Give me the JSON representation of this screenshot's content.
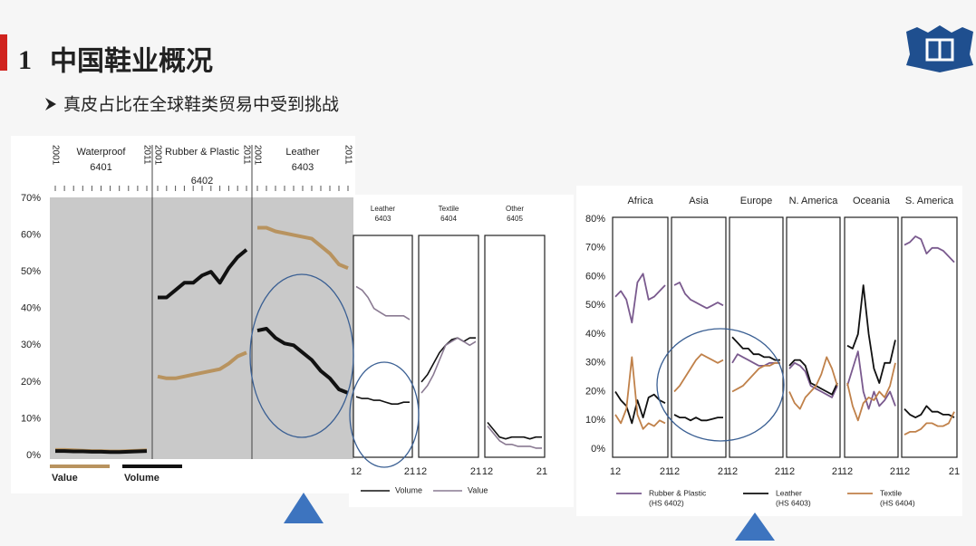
{
  "header": {
    "number": "1",
    "title": "中国鞋业概况",
    "bullet": "真皮占比在全球鞋类贸易中受到挑战"
  },
  "chart_data": [
    {
      "type": "line",
      "panels": [
        {
          "name": "Waterproof",
          "code": "6401"
        },
        {
          "name": "Rubber & Plastic",
          "code": "6402"
        },
        {
          "name": "Leather",
          "code": "6403"
        }
      ],
      "x": [
        2001,
        2002,
        2003,
        2004,
        2005,
        2006,
        2007,
        2008,
        2009,
        2010,
        2011
      ],
      "xlim": [
        2001,
        2011
      ],
      "xticks": [
        2001,
        2011
      ],
      "ylim": [
        0,
        70
      ],
      "yticks": [
        {
          "value": 0,
          "label": "0%"
        },
        {
          "value": 10,
          "label": "10%"
        },
        {
          "value": 20,
          "label": "20%"
        },
        {
          "value": 30,
          "label": "30%"
        },
        {
          "value": 40,
          "label": "40%"
        },
        {
          "value": 50,
          "label": "50%"
        },
        {
          "value": 60,
          "label": "60%"
        },
        {
          "value": 70,
          "label": "70%"
        }
      ],
      "series": [
        {
          "name": "Value",
          "color": "#b8935f",
          "values": [
            [
              1.5,
              1.5,
              1.4,
              1.3,
              1.2,
              1.2,
              1.1,
              1.1,
              1.2,
              1.3,
              1.4
            ],
            [
              21.5,
              21,
              21,
              21.5,
              22,
              22.5,
              23,
              23.5,
              25,
              27,
              28
            ],
            [
              62,
              62,
              61,
              60.5,
              60,
              59.5,
              59,
              57,
              55,
              52,
              51
            ]
          ]
        },
        {
          "name": "Volume",
          "color": "#111111",
          "values": [
            [
              1.2,
              1.2,
              1.1,
              1.1,
              1.0,
              1.0,
              0.9,
              0.9,
              1.0,
              1.1,
              1.2
            ],
            [
              43,
              43,
              45,
              47,
              47,
              49,
              50,
              47,
              51,
              54,
              56
            ],
            [
              34,
              34.5,
              32,
              30.5,
              30,
              28,
              26,
              23,
              21,
              18,
              17
            ]
          ]
        }
      ]
    },
    {
      "type": "line",
      "panels": [
        {
          "name": "Leather",
          "code": "6403"
        },
        {
          "name": "Textile",
          "code": "6404"
        },
        {
          "name": "Other",
          "code": "6405"
        }
      ],
      "x": [
        2012,
        2013,
        2014,
        2015,
        2016,
        2017,
        2018,
        2019,
        2020,
        2021
      ],
      "xlim": [
        2012,
        2021
      ],
      "xticks": [
        {
          "value": 2012,
          "label": "12"
        },
        {
          "value": 2021,
          "label": "21"
        }
      ],
      "ylim": [
        0,
        70
      ],
      "series": [
        {
          "name": "Volume",
          "color": "#111111",
          "values": [
            [
              16,
              15.5,
              15.5,
              15,
              15,
              14.5,
              14,
              14,
              14.5,
              14.5
            ],
            [
              20,
              22,
              25,
              28,
              30,
              31.5,
              32,
              31,
              32,
              32
            ],
            [
              9,
              7,
              5,
              4.5,
              5,
              5,
              5,
              4.5,
              5,
              5
            ]
          ]
        },
        {
          "name": "Value",
          "color": "#8a7a92",
          "values": [
            [
              46,
              45,
              43,
              40,
              39,
              38,
              38,
              38,
              38,
              37
            ],
            [
              17,
              19,
              22,
              26,
              30,
              31,
              32,
              31,
              30,
              31
            ],
            [
              8,
              6,
              4,
              3,
              3,
              2.5,
              2.5,
              2.5,
              2,
              2
            ]
          ]
        }
      ]
    },
    {
      "type": "line",
      "panels": [
        {
          "name": "Africa"
        },
        {
          "name": "Asia"
        },
        {
          "name": "Europe"
        },
        {
          "name": "N. America"
        },
        {
          "name": "Oceania"
        },
        {
          "name": "S. America"
        }
      ],
      "x": [
        2012,
        2013,
        2014,
        2015,
        2016,
        2017,
        2018,
        2019,
        2020,
        2021
      ],
      "xlim": [
        2012,
        2021
      ],
      "xticks": [
        {
          "value": 2012,
          "label": "12"
        },
        {
          "value": 2021,
          "label": "21"
        }
      ],
      "ylim": [
        0,
        80
      ],
      "yticks": [
        {
          "value": 0,
          "label": "0%"
        },
        {
          "value": 10,
          "label": "10%"
        },
        {
          "value": 20,
          "label": "20%"
        },
        {
          "value": 30,
          "label": "30%"
        },
        {
          "value": 40,
          "label": "40%"
        },
        {
          "value": 50,
          "label": "50%"
        },
        {
          "value": 60,
          "label": "60%"
        },
        {
          "value": 70,
          "label": "70%"
        },
        {
          "value": 80,
          "label": "80%"
        }
      ],
      "series": [
        {
          "name": "Rubber & Plastic",
          "code": "(HS 6402)",
          "color": "#7a5a8e",
          "values": [
            [
              53,
              55,
              52,
              44,
              58,
              61,
              52,
              53,
              55,
              57
            ],
            [
              57,
              58,
              54,
              52,
              51,
              50,
              49,
              50,
              51,
              50
            ],
            [
              30,
              33,
              32,
              31,
              30,
              29,
              29,
              30,
              30,
              30
            ],
            [
              28,
              30,
              29,
              27,
              22,
              21,
              20,
              19,
              18,
              22
            ],
            [
              22,
              28,
              34,
              20,
              14,
              20,
              15,
              17,
              20,
              15
            ],
            [
              71,
              72,
              74,
              73,
              68,
              70,
              70,
              69,
              67,
              65
            ]
          ]
        },
        {
          "name": "Leather",
          "code": "(HS 6403)",
          "color": "#111111",
          "values": [
            [
              20,
              17,
              15,
              9,
              17,
              11,
              18,
              19,
              17,
              16
            ],
            [
              12,
              11,
              11,
              10,
              11,
              10,
              10,
              10.5,
              11,
              11
            ],
            [
              39,
              37,
              35,
              35,
              33,
              33,
              32,
              32,
              31,
              31
            ],
            [
              29,
              31,
              31,
              29,
              23,
              22,
              21,
              20,
              19,
              23
            ],
            [
              36,
              35,
              40,
              57,
              40,
              28,
              23,
              30,
              30,
              38
            ],
            [
              14,
              12,
              11,
              12,
              15,
              13,
              13,
              12,
              12,
              11
            ]
          ]
        },
        {
          "name": "Textile",
          "code": "(HS 6404)",
          "color": "#c0814a",
          "values": [
            [
              12,
              9,
              14,
              32,
              12,
              7,
              9,
              8,
              10,
              9
            ],
            [
              20,
              22,
              25,
              28,
              31,
              33,
              32,
              31,
              30,
              31
            ],
            [
              20,
              21,
              22,
              24,
              26,
              28,
              29,
              29,
              30,
              30
            ],
            [
              20,
              16,
              14,
              18,
              20,
              22,
              26,
              32,
              28,
              22
            ],
            [
              23,
              15,
              10,
              16,
              18,
              17,
              20,
              18,
              22,
              30
            ],
            [
              5,
              6,
              6,
              7,
              9,
              9,
              8,
              8,
              9,
              13
            ]
          ]
        }
      ]
    }
  ]
}
